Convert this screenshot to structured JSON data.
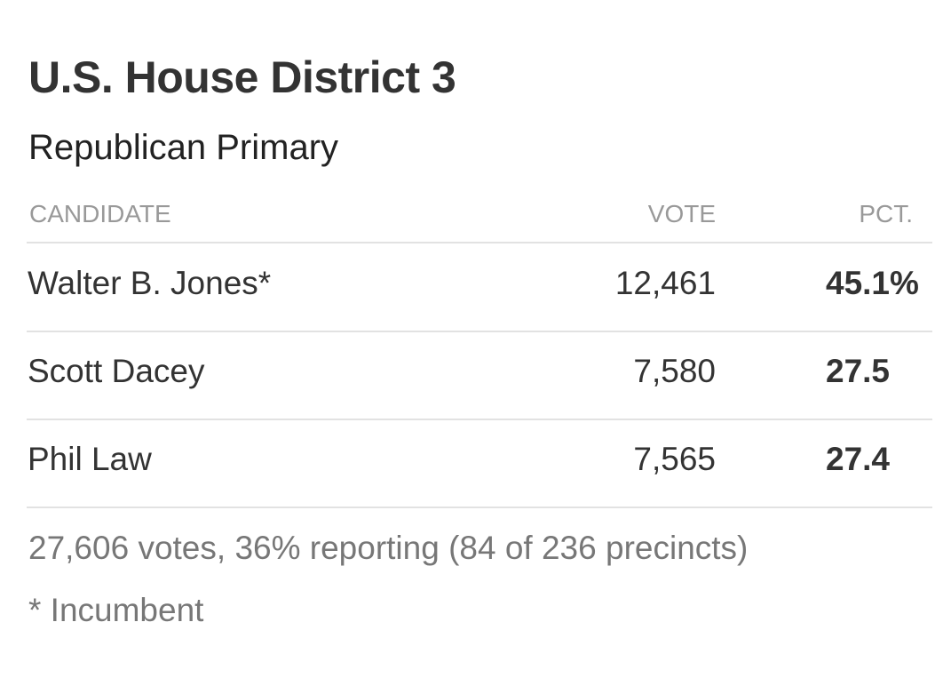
{
  "header": {
    "title": "U.S. House District 3",
    "subtitle": "Republican Primary"
  },
  "table": {
    "columns": [
      "CANDIDATE",
      "VOTE",
      "PCT."
    ],
    "rows": [
      [
        "Walter B. Jones*",
        "12,461",
        "45.1%"
      ],
      [
        "Scott Dacey",
        "7,580",
        "27.5"
      ],
      [
        "Phil Law",
        "7,565",
        "27.4"
      ]
    ]
  },
  "footer": {
    "summary": "27,606 votes, 36% reporting (84 of 236 precincts)",
    "note": "* Incumbent"
  }
}
